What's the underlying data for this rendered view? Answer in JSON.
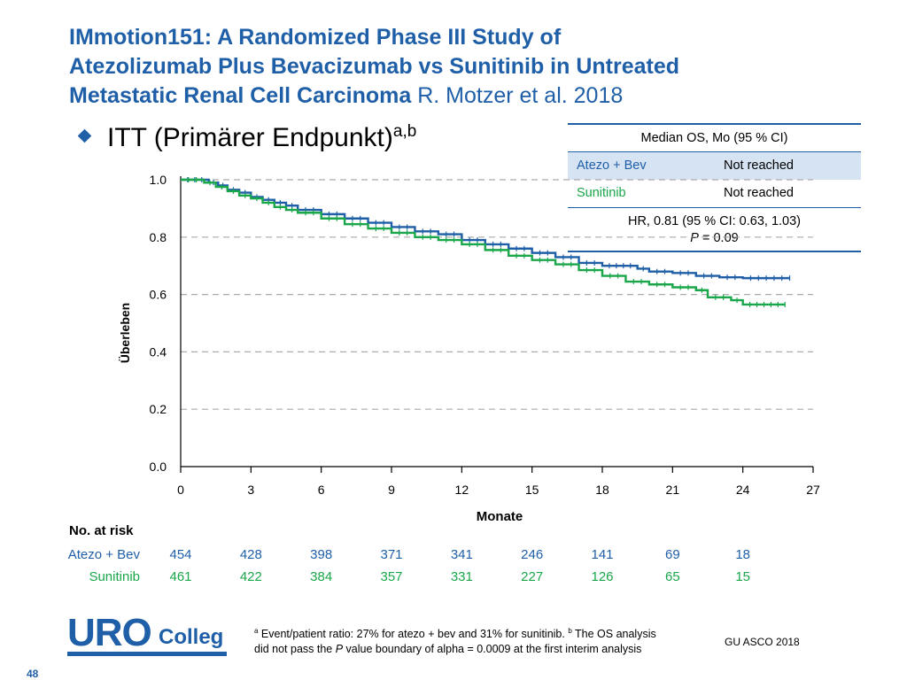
{
  "slide": {
    "title_line1": "IMmotion151: A Randomized Phase III Study of",
    "title_line2": "Atezolizumab Plus Bevacizumab vs Sunitinib in Untreated",
    "title_line3": "Metastatic Renal Cell Carcinoma",
    "author": "R. Motzer et al. 2018",
    "bullet_text": "ITT (Primärer Endpunkt)",
    "bullet_sup": "a,b",
    "conference": "GU ASCO 2018",
    "page_number": "48",
    "footnote_a_mark": "a",
    "footnote_a": " Event/patient ratio: 27% for atezo + bev and 31% for sunitinib. ",
    "footnote_b_mark": "b",
    "footnote_b1": " The OS analysis",
    "footnote_b2": "did not pass the ",
    "footnote_b_p": "P",
    "footnote_b3": " value boundary of alpha = 0.0009 at the first interim analysis",
    "logo_uro": "URO",
    "logo_colleg": "Colleg"
  },
  "os_table": {
    "header": "Median OS, Mo (95 % CI)",
    "rows": [
      {
        "arm": "Atezo + Bev",
        "value": "Not reached"
      },
      {
        "arm": "Sunitinib",
        "value": "Not reached"
      }
    ],
    "hr_line": "HR, 0.81 (95 % CI: 0.63, 1.03)",
    "p_italic": "P",
    "p_value": " = 0.09"
  },
  "colors": {
    "atezo": "#1f5fa8",
    "sunitinib": "#1aa64a",
    "title": "#1f5fa8"
  },
  "chart_data": {
    "type": "line",
    "xlabel": "Monate",
    "ylabel": "Überleben",
    "xlim": [
      0,
      27
    ],
    "ylim": [
      0.0,
      1.0
    ],
    "x_ticks": [
      0,
      3,
      6,
      9,
      12,
      15,
      18,
      21,
      24,
      27
    ],
    "y_ticks": [
      0.0,
      0.2,
      0.4,
      0.6,
      0.8,
      1.0
    ],
    "y_tick_labels": [
      "0.0",
      "0.2",
      "0.4",
      "0.6",
      "0.8",
      "1.0"
    ],
    "grid": "horizontal dashed",
    "series": [
      {
        "name": "Atezo + Bev",
        "color": "#1f5fa8",
        "step_points": [
          [
            0,
            1.0
          ],
          [
            1.2,
            0.99
          ],
          [
            1.6,
            0.98
          ],
          [
            2.0,
            0.965
          ],
          [
            2.5,
            0.955
          ],
          [
            3.0,
            0.94
          ],
          [
            3.5,
            0.93
          ],
          [
            4.0,
            0.92
          ],
          [
            4.5,
            0.91
          ],
          [
            5.0,
            0.895
          ],
          [
            6.0,
            0.88
          ],
          [
            7.0,
            0.865
          ],
          [
            8.0,
            0.85
          ],
          [
            9.0,
            0.835
          ],
          [
            10.0,
            0.82
          ],
          [
            11.0,
            0.81
          ],
          [
            12.0,
            0.79
          ],
          [
            13.0,
            0.775
          ],
          [
            14.0,
            0.76
          ],
          [
            15.0,
            0.745
          ],
          [
            16.0,
            0.73
          ],
          [
            17.0,
            0.71
          ],
          [
            18.0,
            0.7
          ],
          [
            19.5,
            0.69
          ],
          [
            20.0,
            0.68
          ],
          [
            21.0,
            0.675
          ],
          [
            22.0,
            0.665
          ],
          [
            23.0,
            0.66
          ],
          [
            24.0,
            0.657
          ],
          [
            26.0,
            0.657
          ]
        ]
      },
      {
        "name": "Sunitinib",
        "color": "#1aa64a",
        "step_points": [
          [
            0,
            1.0
          ],
          [
            1.0,
            0.99
          ],
          [
            1.5,
            0.975
          ],
          [
            2.0,
            0.96
          ],
          [
            2.5,
            0.945
          ],
          [
            3.0,
            0.935
          ],
          [
            3.5,
            0.92
          ],
          [
            4.0,
            0.905
          ],
          [
            4.5,
            0.895
          ],
          [
            5.0,
            0.885
          ],
          [
            6.0,
            0.865
          ],
          [
            7.0,
            0.845
          ],
          [
            8.0,
            0.83
          ],
          [
            9.0,
            0.815
          ],
          [
            10.0,
            0.8
          ],
          [
            11.0,
            0.79
          ],
          [
            12.0,
            0.775
          ],
          [
            13.0,
            0.755
          ],
          [
            14.0,
            0.735
          ],
          [
            15.0,
            0.72
          ],
          [
            16.0,
            0.705
          ],
          [
            17.0,
            0.685
          ],
          [
            18.0,
            0.665
          ],
          [
            19.0,
            0.645
          ],
          [
            20.0,
            0.635
          ],
          [
            21.0,
            0.625
          ],
          [
            22.0,
            0.615
          ],
          [
            22.5,
            0.59
          ],
          [
            23.5,
            0.58
          ],
          [
            24.0,
            0.565
          ],
          [
            25.8,
            0.565
          ]
        ]
      }
    ]
  },
  "risk_table": {
    "title": "No. at risk",
    "times": [
      0,
      3,
      6,
      9,
      12,
      15,
      18,
      21,
      24
    ],
    "rows": [
      {
        "label": "Atezo + Bev",
        "values": [
          "454",
          "428",
          "398",
          "371",
          "341",
          "246",
          "141",
          "69",
          "18"
        ]
      },
      {
        "label": "Sunitinib",
        "values": [
          "461",
          "422",
          "384",
          "357",
          "331",
          "227",
          "126",
          "65",
          "15"
        ]
      }
    ]
  }
}
